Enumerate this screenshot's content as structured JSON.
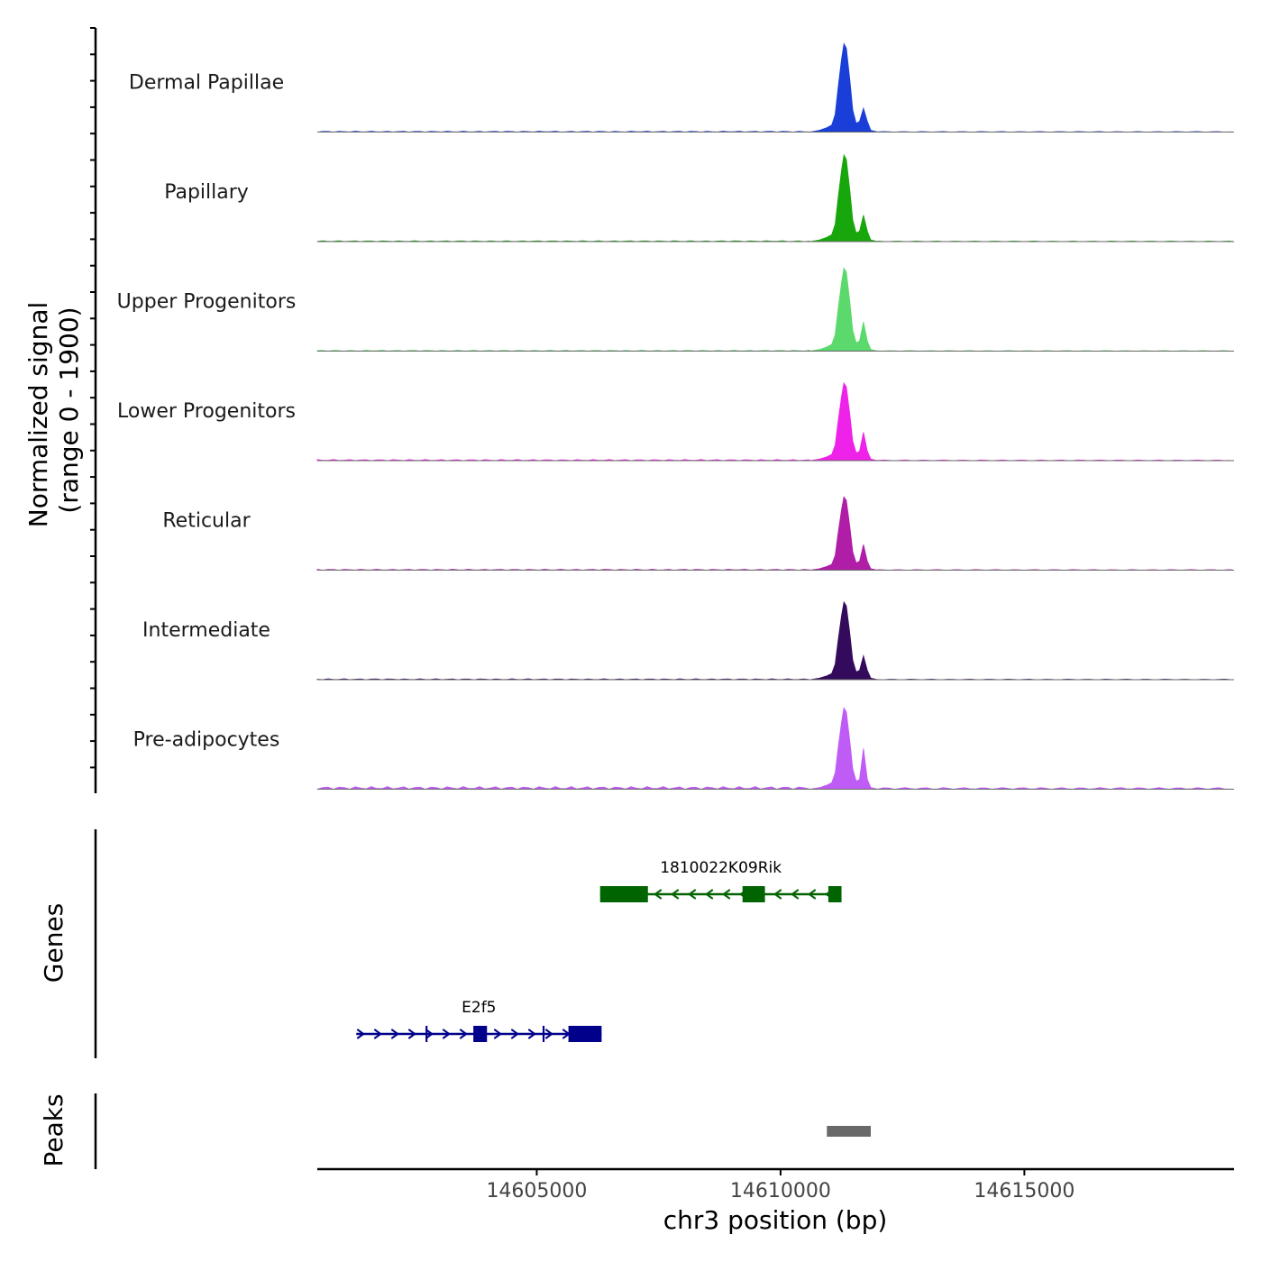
{
  "chart_data": {
    "type": "area",
    "title": "",
    "ylabel_line1": "Normalized signal",
    "ylabel_line2": "(range 0 - 1900)",
    "xlabel": "chr3 position (bp)",
    "xlim": [
      14600500,
      14619300
    ],
    "x_ticks": [
      14605000,
      14610000,
      14615000
    ],
    "x_tick_labels": [
      "14605000",
      "14610000",
      "14615000"
    ],
    "y_range": [
      0,
      1900
    ],
    "coverage_tracks": [
      {
        "name": "Dermal Papillae",
        "color": "#1a3fd9",
        "peak_scale": 1.0,
        "second_scale": 0.27,
        "baseline_noise": 0.01
      },
      {
        "name": "Papillary",
        "color": "#18a60d",
        "peak_scale": 0.98,
        "second_scale": 0.3,
        "baseline_noise": 0.01
      },
      {
        "name": "Upper Progenitors",
        "color": "#5cd96c",
        "peak_scale": 0.94,
        "second_scale": 0.33,
        "baseline_noise": 0.01
      },
      {
        "name": "Lower Progenitors",
        "color": "#ee22e8",
        "peak_scale": 0.88,
        "second_scale": 0.32,
        "baseline_noise": 0.012
      },
      {
        "name": "Reticular",
        "color": "#b01ea8",
        "peak_scale": 0.83,
        "second_scale": 0.29,
        "baseline_noise": 0.01
      },
      {
        "name": "Intermediate",
        "color": "#340b5c",
        "peak_scale": 0.88,
        "second_scale": 0.27,
        "baseline_noise": 0.01
      },
      {
        "name": "Pre-adipocytes",
        "color": "#c05cf6",
        "peak_scale": 0.92,
        "second_scale": 0.46,
        "baseline_noise": 0.03
      }
    ],
    "peak_profile": [
      [
        14610600,
        0.0
      ],
      [
        14610800,
        0.02
      ],
      [
        14610950,
        0.05
      ],
      [
        14611050,
        0.08
      ],
      [
        14611120,
        0.2
      ],
      [
        14611180,
        0.5
      ],
      [
        14611250,
        0.82
      ],
      [
        14611300,
        1.0
      ],
      [
        14611350,
        0.95
      ],
      [
        14611420,
        0.6
      ],
      [
        14611480,
        0.25
      ],
      [
        14611550,
        0.1
      ],
      [
        14611620,
        0.12
      ],
      [
        14611700,
        "second"
      ],
      [
        14611780,
        0.12
      ],
      [
        14611850,
        0.02
      ],
      [
        14612000,
        0.0
      ]
    ],
    "genes_label": "Genes",
    "peaks_label": "Peaks",
    "genes": [
      {
        "name": "1810022K09Rik",
        "strand": "-",
        "color": "#006400",
        "start": 14606300,
        "end": 14611250,
        "row": 1,
        "exons": [
          [
            14606300,
            14607280
          ],
          [
            14609220,
            14609680
          ],
          [
            14610980,
            14611250
          ]
        ]
      },
      {
        "name": "E2f5",
        "strand": "+",
        "color": "#00008b",
        "start": 14601300,
        "end": 14606330,
        "row": 2,
        "exons": [
          [
            14602720,
            14602760
          ],
          [
            14603700,
            14603980
          ],
          [
            14605120,
            14605160
          ],
          [
            14605650,
            14606330
          ]
        ]
      }
    ],
    "peaks": [
      {
        "start": 14610950,
        "end": 14611850,
        "color": "#696969"
      }
    ]
  }
}
